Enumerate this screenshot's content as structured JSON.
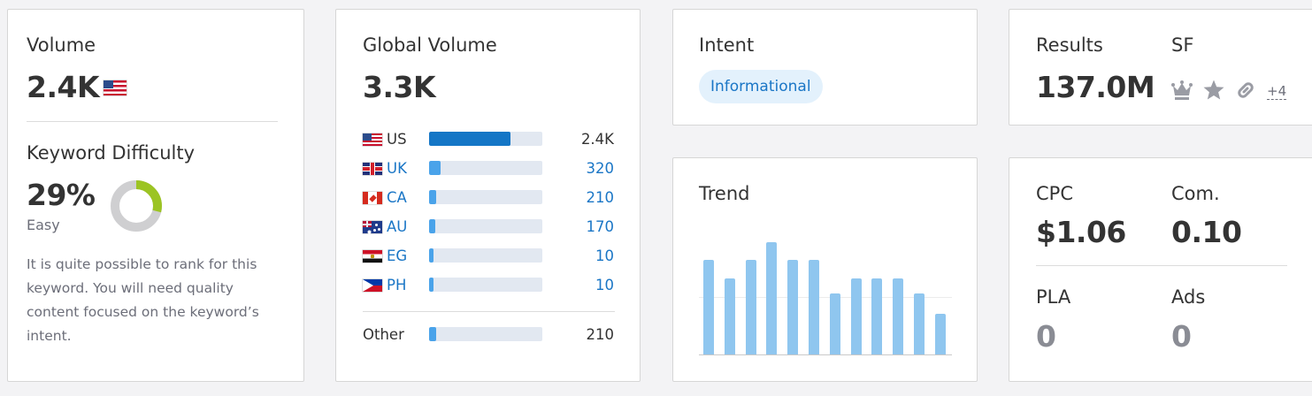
{
  "volume": {
    "label": "Volume",
    "value": "2.4K",
    "flag_icon": "us-flag-icon"
  },
  "difficulty": {
    "label": "Keyword Difficulty",
    "value": "29%",
    "level": "Easy",
    "percent": 29,
    "ring_color": "#9cc423",
    "description": "It is quite possible to rank for this keyword. You will need quality content focused on the keyword’s intent."
  },
  "global_volume": {
    "label": "Global Volume",
    "value": "3.3K",
    "countries": [
      {
        "code": "US",
        "value": "2.4K",
        "share": 0.72,
        "flag": "us-flag-icon"
      },
      {
        "code": "UK",
        "value": "320",
        "share": 0.1,
        "flag": "uk-flag-icon"
      },
      {
        "code": "CA",
        "value": "210",
        "share": 0.065,
        "flag": "ca-flag-icon"
      },
      {
        "code": "AU",
        "value": "170",
        "share": 0.055,
        "flag": "au-flag-icon"
      },
      {
        "code": "EG",
        "value": "10",
        "share": 0.035,
        "flag": "eg-flag-icon"
      },
      {
        "code": "PH",
        "value": "10",
        "share": 0.035,
        "flag": "ph-flag-icon"
      }
    ],
    "other": {
      "label": "Other",
      "value": "210",
      "share": 0.065
    }
  },
  "intent": {
    "label": "Intent",
    "tag": "Informational"
  },
  "trend": {
    "label": "Trend",
    "values": [
      0.84,
      0.68,
      0.84,
      1.0,
      0.84,
      0.84,
      0.54,
      0.68,
      0.68,
      0.68,
      0.54,
      0.36
    ]
  },
  "results": {
    "label": "Results",
    "value": "137.0M",
    "sf_label": "SF",
    "sf_more": "+4",
    "sf_icons": [
      "crown-icon",
      "star-icon",
      "link-icon"
    ]
  },
  "cpc": {
    "cpc_label": "CPC",
    "cpc_value": "$1.06",
    "com_label": "Com.",
    "com_value": "0.10",
    "pla_label": "PLA",
    "pla_value": "0",
    "ads_label": "Ads",
    "ads_value": "0"
  },
  "colors": {
    "bar_us": "#1476c6",
    "bar_other": "#4aa3ea",
    "bar_track": "#e2e8f1",
    "trend_bar": "#8fc6ef",
    "link": "#1a76c6"
  }
}
